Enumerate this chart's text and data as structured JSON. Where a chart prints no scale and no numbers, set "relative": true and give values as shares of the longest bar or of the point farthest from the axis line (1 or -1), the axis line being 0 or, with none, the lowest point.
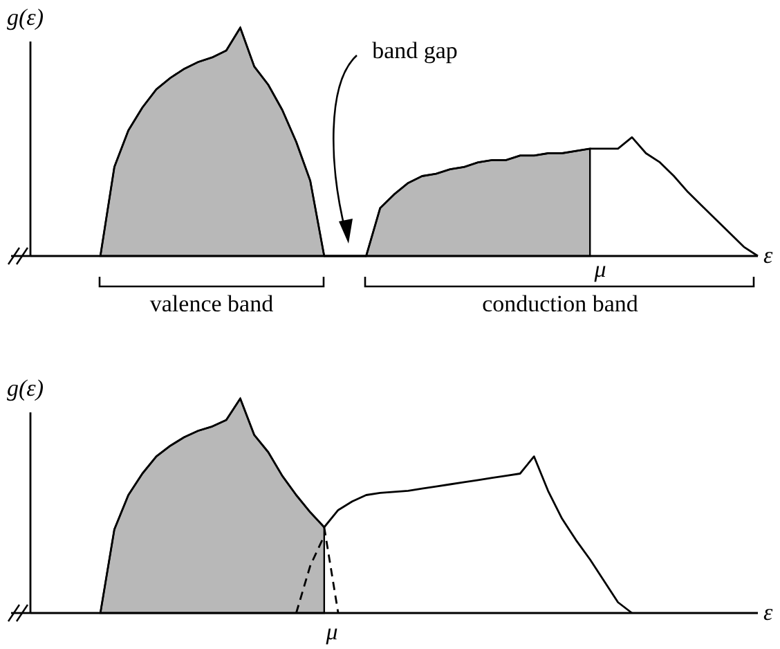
{
  "chart_data": [
    {
      "type": "line",
      "relative": true,
      "ylabel": "g(ε)",
      "xlabel": "ε",
      "categories": [
        null,
        null,
        null,
        null,
        null,
        null,
        null,
        null,
        null,
        null,
        null,
        null,
        null,
        null,
        null,
        null,
        null,
        null,
        null,
        null,
        null,
        null,
        null,
        null,
        null,
        null,
        null,
        null,
        null,
        null,
        null,
        null,
        null,
        null,
        null,
        null,
        null,
        null,
        null,
        null,
        null,
        null,
        null,
        null,
        null,
        null,
        null,
        null,
        null,
        null,
        null,
        null,
        null
      ],
      "series": [
        {
          "type": "area",
          "color": "#b8b8b8",
          "values": [
            null,
            null,
            null,
            null,
            null,
            0,
            0.39,
            0.55,
            0.65,
            0.73,
            0.78,
            0.82,
            0.85,
            0.87,
            0.9,
            1,
            0.83,
            0.75,
            0.64,
            0.5,
            0.33,
            0,
            null,
            null,
            0,
            0.21,
            0.27,
            0.32,
            0.35,
            0.36,
            0.38,
            0.39,
            0.41,
            0.42,
            0.42,
            0.44,
            0.44,
            0.45,
            0.45,
            0.46,
            0.47,
            null,
            null,
            null,
            null,
            null,
            null,
            null,
            null,
            null,
            null,
            null,
            null
          ]
        },
        {
          "color": "#000000",
          "line_style": "solid",
          "values": [
            null,
            null,
            null,
            null,
            null,
            0,
            0.39,
            0.55,
            0.65,
            0.73,
            0.78,
            0.82,
            0.85,
            0.87,
            0.9,
            1,
            0.83,
            0.75,
            0.64,
            0.5,
            0.33,
            0,
            0,
            0,
            0,
            0.21,
            0.27,
            0.32,
            0.35,
            0.36,
            0.38,
            0.39,
            0.41,
            0.42,
            0.42,
            0.44,
            0.44,
            0.45,
            0.45,
            0.46,
            0.47,
            0.47,
            0.47,
            0.52,
            0.45,
            0.41,
            0.35,
            0.28,
            0.22,
            0.16,
            0.1,
            0.04,
            0
          ]
        }
      ],
      "annotations": [
        "band gap",
        "valence band",
        "conduction band",
        "μ"
      ]
    },
    {
      "type": "line",
      "relative": true,
      "ylabel": "g(ε)",
      "xlabel": "ε",
      "categories": [
        null,
        null,
        null,
        null,
        null,
        null,
        null,
        null,
        null,
        null,
        null,
        null,
        null,
        null,
        null,
        null,
        null,
        null,
        null,
        null,
        null,
        null,
        null,
        null,
        null,
        null,
        null,
        null,
        null,
        null,
        null,
        null,
        null,
        null,
        null,
        null,
        null,
        null,
        null,
        null,
        null,
        null,
        null,
        null,
        null,
        null,
        null,
        null,
        null,
        null,
        null,
        null,
        null
      ],
      "series": [
        {
          "type": "area",
          "color": "#b8b8b8",
          "values": [
            null,
            null,
            null,
            null,
            null,
            0,
            0.39,
            0.55,
            0.65,
            0.73,
            0.78,
            0.82,
            0.85,
            0.87,
            0.9,
            1,
            0.83,
            0.75,
            0.64,
            0.55,
            0.47,
            0.4,
            null,
            null,
            null,
            null,
            null,
            null,
            null,
            null,
            null,
            null,
            null,
            null,
            null,
            null,
            null,
            null,
            null,
            null,
            null,
            null,
            null,
            null,
            null,
            null,
            null,
            null,
            null,
            null,
            null,
            null,
            null
          ]
        },
        {
          "color": "#000000",
          "line_style": "solid",
          "values": [
            null,
            null,
            null,
            null,
            null,
            0,
            0.39,
            0.55,
            0.65,
            0.73,
            0.78,
            0.82,
            0.85,
            0.87,
            0.9,
            1,
            0.83,
            0.75,
            0.64,
            0.55,
            0.47,
            0.4,
            0.48,
            0.52,
            0.55,
            0.56,
            0.565,
            0.57,
            0.58,
            0.59,
            0.6,
            0.61,
            0.62,
            0.63,
            0.64,
            0.65,
            0.73,
            0.57,
            0.44,
            0.34,
            0.25,
            0.15,
            0.05,
            0,
            null,
            null,
            null,
            null,
            null,
            null,
            null,
            null,
            null
          ]
        },
        {
          "color": "#000000",
          "line_style": "dashed",
          "values": [
            null,
            null,
            null,
            null,
            null,
            null,
            null,
            null,
            null,
            null,
            null,
            null,
            null,
            null,
            null,
            null,
            null,
            null,
            null,
            null,
            null,
            0.4,
            0,
            null,
            null,
            null,
            null,
            null,
            null,
            null,
            null,
            null,
            null,
            null,
            null,
            null,
            null,
            null,
            null,
            null,
            null,
            null,
            null,
            null,
            null,
            null,
            null,
            null,
            null,
            null,
            null,
            null,
            null
          ]
        },
        {
          "color": "#000000",
          "line_style": "dashed",
          "values": [
            null,
            null,
            null,
            null,
            null,
            null,
            null,
            null,
            null,
            null,
            null,
            null,
            null,
            null,
            null,
            null,
            null,
            null,
            null,
            0,
            0.22,
            0.36,
            null,
            null,
            null,
            null,
            null,
            null,
            null,
            null,
            null,
            null,
            null,
            null,
            null,
            null,
            null,
            null,
            null,
            null,
            null,
            null,
            null,
            null,
            null,
            null,
            null,
            null,
            null,
            null,
            null,
            null,
            null
          ]
        }
      ],
      "annotations": [
        "μ"
      ]
    }
  ]
}
